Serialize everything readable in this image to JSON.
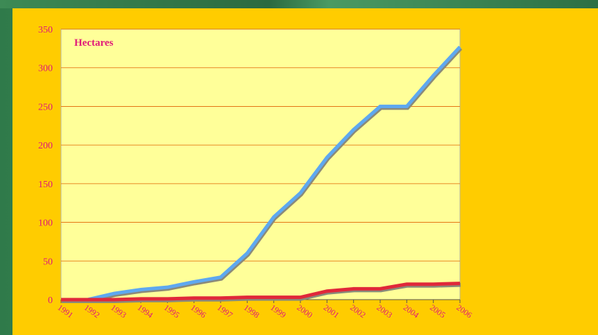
{
  "chart_data": {
    "type": "line",
    "x": [
      "1991",
      "1992",
      "1993",
      "1994",
      "1995",
      "1996",
      "1997",
      "1998",
      "1999",
      "2000",
      "2001",
      "2002",
      "2003",
      "2004",
      "2005",
      "2006"
    ],
    "ylim": [
      0,
      350
    ],
    "yticks": [
      0,
      50,
      100,
      150,
      200,
      250,
      300,
      350
    ],
    "series": [
      {
        "color": "#5ea8f0",
        "values": [
          0,
          0,
          8,
          13,
          16,
          23,
          29,
          60,
          107,
          138,
          184,
          220,
          250,
          250,
          290,
          327
        ]
      },
      {
        "color": "#e0283a",
        "values": [
          0,
          0,
          0,
          1,
          1,
          2,
          2,
          3,
          3,
          3,
          11,
          14,
          14,
          20,
          20,
          21
        ]
      }
    ],
    "annotation": "Hectares",
    "grid": true,
    "colors": {
      "plot_bg": "#ffff99",
      "axis_text": "#e0187a",
      "gridline": "#e06000",
      "frame": "#ffcc00"
    }
  }
}
